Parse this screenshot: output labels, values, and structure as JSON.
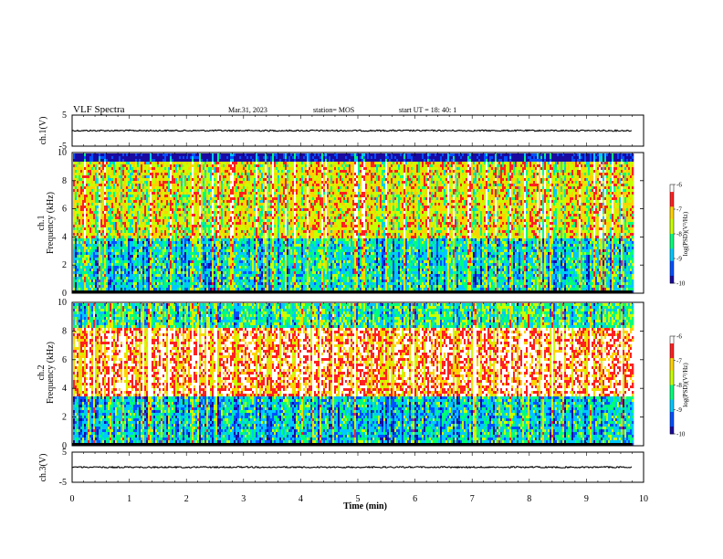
{
  "header": {
    "title": "VLF Spectra",
    "date": "Mar.31, 2023",
    "station": "station= MOS",
    "start": "start  UT =   18: 40: 1"
  },
  "colors": {
    "spectrum": [
      "#1a0aa0",
      "#0050ff",
      "#00c8ff",
      "#00ff7a",
      "#c8ff00",
      "#ffd200",
      "#ff2020",
      "#ffffff"
    ]
  },
  "chart_data": [
    {
      "type": "line",
      "panel": "ch1-waveform",
      "ylabel": "ch.1(V)",
      "ylim": [
        -5,
        5
      ],
      "ytick_labels": [
        "5",
        "-5"
      ],
      "x": [
        0,
        1,
        2,
        3,
        4,
        5,
        6,
        7,
        8,
        9,
        9.8
      ],
      "values": [
        0,
        0,
        0,
        0,
        0,
        0,
        0,
        0,
        0,
        0,
        0
      ]
    },
    {
      "type": "heatmap",
      "panel": "ch1-spectrogram",
      "ylabel": "ch.1\nFrequency (kHz)",
      "ylabel_line1": "ch.1",
      "ylabel_line2": "Frequency (kHz)",
      "ylim": [
        0,
        10
      ],
      "ytick_labels": [
        "0",
        "2",
        "4",
        "6",
        "8",
        "10"
      ],
      "band_dominant_log_psd": [
        {
          "freq_range_khz": [
            0,
            0.3
          ],
          "level": -10
        },
        {
          "freq_range_khz": [
            0.3,
            4
          ],
          "level": -8.5
        },
        {
          "freq_range_khz": [
            4,
            9.5
          ],
          "level": -7.3
        },
        {
          "freq_range_khz": [
            9.5,
            10
          ],
          "level": -10
        }
      ],
      "colorbar": {
        "label": "log(PSD)(V²/Hz)",
        "min": -10,
        "max": -6,
        "tick_labels": [
          "-6",
          "-7",
          "-8",
          "-9",
          "-10"
        ]
      }
    },
    {
      "type": "heatmap",
      "panel": "ch2-spectrogram",
      "ylabel_line1": "ch.2",
      "ylabel_line2": "Frequency (kHz)",
      "ylim": [
        0,
        10
      ],
      "ytick_labels": [
        "0",
        "2",
        "4",
        "6",
        "8",
        "10"
      ],
      "band_dominant_log_psd": [
        {
          "freq_range_khz": [
            0,
            0.3
          ],
          "level": -10
        },
        {
          "freq_range_khz": [
            0.3,
            3.5
          ],
          "level": -8.6
        },
        {
          "freq_range_khz": [
            3.5,
            8.3
          ],
          "level": -6.4
        },
        {
          "freq_range_khz": [
            8.3,
            10
          ],
          "level": -8.2
        }
      ],
      "colorbar": {
        "label": "log(PSD)(V²/Hz)",
        "min": -10,
        "max": -6,
        "tick_labels": [
          "-6",
          "-7",
          "-8",
          "-9",
          "-10"
        ]
      }
    },
    {
      "type": "line",
      "panel": "ch3-waveform",
      "ylabel": "ch.3(V)",
      "ylim": [
        -5,
        5
      ],
      "ytick_labels": [
        "5",
        "-5"
      ],
      "x": [
        0,
        1,
        2,
        3,
        4,
        5,
        6,
        7,
        8,
        9,
        9.8
      ],
      "values": [
        0,
        0,
        0,
        0,
        0,
        0,
        0,
        0,
        0,
        0,
        0
      ]
    }
  ],
  "xaxis": {
    "label": "Time  (min)",
    "xlim": [
      0,
      10
    ],
    "tick_labels": [
      "0",
      "1",
      "2",
      "3",
      "4",
      "5",
      "6",
      "7",
      "8",
      "9",
      "10"
    ],
    "data_end": 9.8
  }
}
